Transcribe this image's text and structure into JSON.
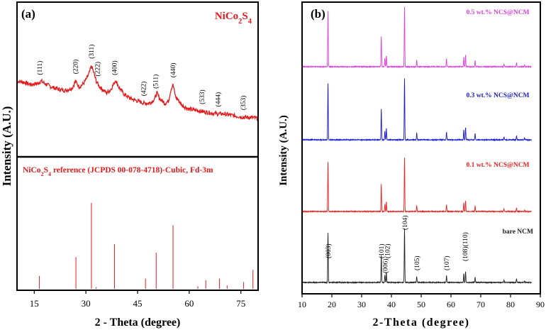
{
  "chart_data": [
    {
      "type": "line",
      "panel": "(a)",
      "title": "NiCo2S4",
      "ylabel": "Intensity (A.U.)",
      "xlabel": "2 - Theta (degree)",
      "xlim": [
        10,
        80
      ],
      "xticks": [
        15,
        30,
        45,
        60,
        75
      ],
      "ylim": [
        0,
        1
      ],
      "color": "#e41a1c",
      "upper": {
        "series_name": "NiCo2S4",
        "x": [
          10,
          12,
          14,
          16,
          17,
          18,
          20,
          22,
          24,
          26,
          27,
          28,
          29,
          30,
          31,
          31.6,
          32.2,
          33,
          34,
          36,
          37,
          38,
          38.6,
          39.5,
          41,
          43,
          45,
          47,
          48,
          49,
          50,
          50.6,
          51.4,
          53,
          54,
          54.7,
          55.3,
          56,
          58,
          60,
          62,
          64,
          66,
          68,
          70,
          72,
          74,
          76,
          78,
          80
        ],
        "y": [
          0.55,
          0.54,
          0.52,
          0.53,
          0.55,
          0.53,
          0.5,
          0.48,
          0.47,
          0.49,
          0.55,
          0.5,
          0.52,
          0.56,
          0.62,
          0.68,
          0.63,
          0.55,
          0.5,
          0.45,
          0.47,
          0.52,
          0.56,
          0.5,
          0.44,
          0.4,
          0.38,
          0.36,
          0.36,
          0.37,
          0.4,
          0.45,
          0.4,
          0.36,
          0.38,
          0.48,
          0.52,
          0.42,
          0.34,
          0.31,
          0.3,
          0.29,
          0.28,
          0.27,
          0.27,
          0.26,
          0.25,
          0.24,
          0.24,
          0.23
        ],
        "peak_labels": [
          {
            "label": "(111)",
            "x": 16.6
          },
          {
            "label": "(220)",
            "x": 27.0
          },
          {
            "label": "(311)",
            "x": 31.6
          },
          {
            "label": "(222)",
            "x": 33.4
          },
          {
            "label": "(400)",
            "x": 38.3
          },
          {
            "label": "(422)",
            "x": 46.8
          },
          {
            "label": "(511)",
            "x": 50.3
          },
          {
            "label": "(440)",
            "x": 55.3
          },
          {
            "label": "(533)",
            "x": 63.7
          },
          {
            "label": "(444)",
            "x": 68.4
          },
          {
            "label": "(353)",
            "x": 75.7
          }
        ]
      },
      "lower": {
        "title": "NiCo2S4 reference (JCPDS 00-078-4718)-Cubic, Fd-3m",
        "sticks": [
          {
            "x": 16.5,
            "h": 0.15
          },
          {
            "x": 27.1,
            "h": 0.37
          },
          {
            "x": 31.6,
            "h": 1.0
          },
          {
            "x": 33.0,
            "h": 0.02
          },
          {
            "x": 38.3,
            "h": 0.52
          },
          {
            "x": 47.3,
            "h": 0.12
          },
          {
            "x": 50.4,
            "h": 0.42
          },
          {
            "x": 55.3,
            "h": 0.74
          },
          {
            "x": 62.5,
            "h": 0.03
          },
          {
            "x": 64.8,
            "h": 0.1
          },
          {
            "x": 68.8,
            "h": 0.12
          },
          {
            "x": 71.0,
            "h": 0.04
          },
          {
            "x": 75.8,
            "h": 0.08
          },
          {
            "x": 78.5,
            "h": 0.22
          }
        ]
      }
    },
    {
      "type": "line",
      "panel": "(b)",
      "ylabel": "Intensity (A.U.)",
      "xlabel": "2-Theta (degree)",
      "xlim": [
        10,
        90
      ],
      "xticks": [
        10,
        20,
        30,
        40,
        50,
        60,
        70,
        80,
        90
      ],
      "peaks": [
        {
          "x": 18.7,
          "h": 1.0
        },
        {
          "x": 36.6,
          "h": 0.55
        },
        {
          "x": 37.8,
          "h": 0.15
        },
        {
          "x": 38.3,
          "h": 0.2
        },
        {
          "x": 44.4,
          "h": 1.08
        },
        {
          "x": 48.5,
          "h": 0.12
        },
        {
          "x": 58.5,
          "h": 0.14
        },
        {
          "x": 64.3,
          "h": 0.18
        },
        {
          "x": 64.9,
          "h": 0.22
        },
        {
          "x": 68.1,
          "h": 0.11
        },
        {
          "x": 77.8,
          "h": 0.05
        },
        {
          "x": 82.0,
          "h": 0.07
        },
        {
          "x": 84.7,
          "h": 0.03
        }
      ],
      "series": [
        {
          "name": "bare NCM",
          "color": "#222222"
        },
        {
          "name": "0.1 wt.% NCS@NCM",
          "color": "#ee2222"
        },
        {
          "name": "0.3 wt.% NCS@NCM",
          "color": "#1a1acc"
        },
        {
          "name": "0.5 wt.% NCS@NCM",
          "color": "#e040e0"
        }
      ],
      "peak_labels": [
        {
          "label": "(003)",
          "x": 18.7
        },
        {
          "label": "(101)",
          "x": 36.6
        },
        {
          "label": "(006)",
          "x": 37.8
        },
        {
          "label": "(102)",
          "x": 38.6
        },
        {
          "label": "(104)",
          "x": 44.4
        },
        {
          "label": "(105)",
          "x": 48.5
        },
        {
          "label": "(107)",
          "x": 58.5
        },
        {
          "label": "(108)(110)",
          "x": 64.6
        }
      ]
    }
  ]
}
